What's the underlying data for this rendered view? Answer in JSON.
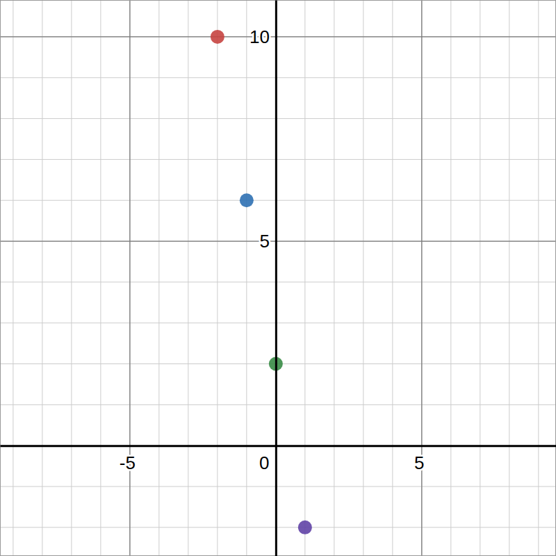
{
  "chart_data": {
    "type": "scatter",
    "x": [
      -2,
      -1,
      0,
      1
    ],
    "values": [
      10,
      6,
      2,
      -2
    ],
    "colors": [
      "#c74440",
      "#2d70b3",
      "#388c46",
      "#6042a6"
    ],
    "xlim": [
      -9.45,
      9.6
    ],
    "ylim": [
      -2.7,
      10.9
    ],
    "xticks": [
      -5,
      0,
      5
    ],
    "yticks": [
      5,
      10
    ],
    "grid": true
  }
}
